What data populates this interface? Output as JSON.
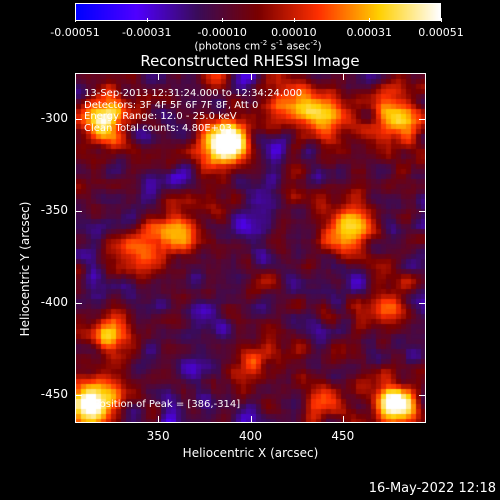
{
  "colorbar": {
    "tick_values": [
      -0.00051,
      -0.00031,
      -0.0001,
      0.0001,
      0.00031,
      0.00051
    ],
    "tick_labels": [
      "-0.00051",
      "-0.00031",
      "-0.00010",
      "0.00010",
      "0.00031",
      "0.00051"
    ],
    "range": [
      -0.00051,
      0.00051
    ],
    "units_prefix": "(photons cm",
    "units_exp1": "-2",
    "units_mid": " s",
    "units_exp2": "-1",
    "units_mid2": " asec",
    "units_exp3": "-2",
    "units_suffix": ")",
    "colors": [
      "#0000ff",
      "#5000ff",
      "#3a0c5a",
      "#7a0000",
      "#ff3000",
      "#ffd000",
      "#ffffff"
    ]
  },
  "title": "Reconstructed RHESSI Image",
  "annotations": {
    "line1": "13-Sep-2013 12:31:24.000 to 12:34:24.000",
    "line2": "Detectors: 3F 4F 5F 6F 7F 8F, Att 0",
    "line3": "Energy Range: 12.0 - 25.0 keV",
    "line4": "Clean     Total counts: 4.80E+03",
    "peak": "Position of Peak = [386,-314]"
  },
  "chart_data": {
    "type": "heatmap",
    "title": "Reconstructed RHESSI Image",
    "xlabel": "Heliocentric X (arcsec)",
    "ylabel": "Heliocentric Y (arcsec)",
    "xlim": [
      305,
      495
    ],
    "ylim": [
      -465,
      -275
    ],
    "x_ticks": [
      350,
      400,
      450
    ],
    "x_tick_labels": [
      "350",
      "400",
      "450"
    ],
    "y_ticks": [
      -450,
      -400,
      -350,
      -300
    ],
    "y_tick_labels": [
      "-450",
      "-400",
      "-350",
      "-300"
    ],
    "value_range": [
      -0.00051,
      0.00051
    ],
    "peak_position": [
      386,
      -314
    ],
    "bright_regions": [
      {
        "x": 386,
        "y": -314,
        "intensity": 1.0
      },
      {
        "x": 320,
        "y": -300,
        "intensity": 0.8
      },
      {
        "x": 315,
        "y": -455,
        "intensity": 0.85
      },
      {
        "x": 480,
        "y": -455,
        "intensity": 0.75
      },
      {
        "x": 480,
        "y": -300,
        "intensity": 0.7
      },
      {
        "x": 420,
        "y": -290,
        "intensity": 0.6
      },
      {
        "x": 340,
        "y": -375,
        "intensity": 0.5
      },
      {
        "x": 360,
        "y": -360,
        "intensity": 0.55
      },
      {
        "x": 455,
        "y": -360,
        "intensity": 0.6
      },
      {
        "x": 325,
        "y": -420,
        "intensity": 0.45
      },
      {
        "x": 440,
        "y": -455,
        "intensity": 0.4
      },
      {
        "x": 400,
        "y": -430,
        "intensity": 0.35
      },
      {
        "x": 470,
        "y": -400,
        "intensity": 0.35
      },
      {
        "x": 440,
        "y": -300,
        "intensity": 0.5
      }
    ]
  },
  "footer": {
    "timestamp": "16-May-2022 12:18"
  }
}
